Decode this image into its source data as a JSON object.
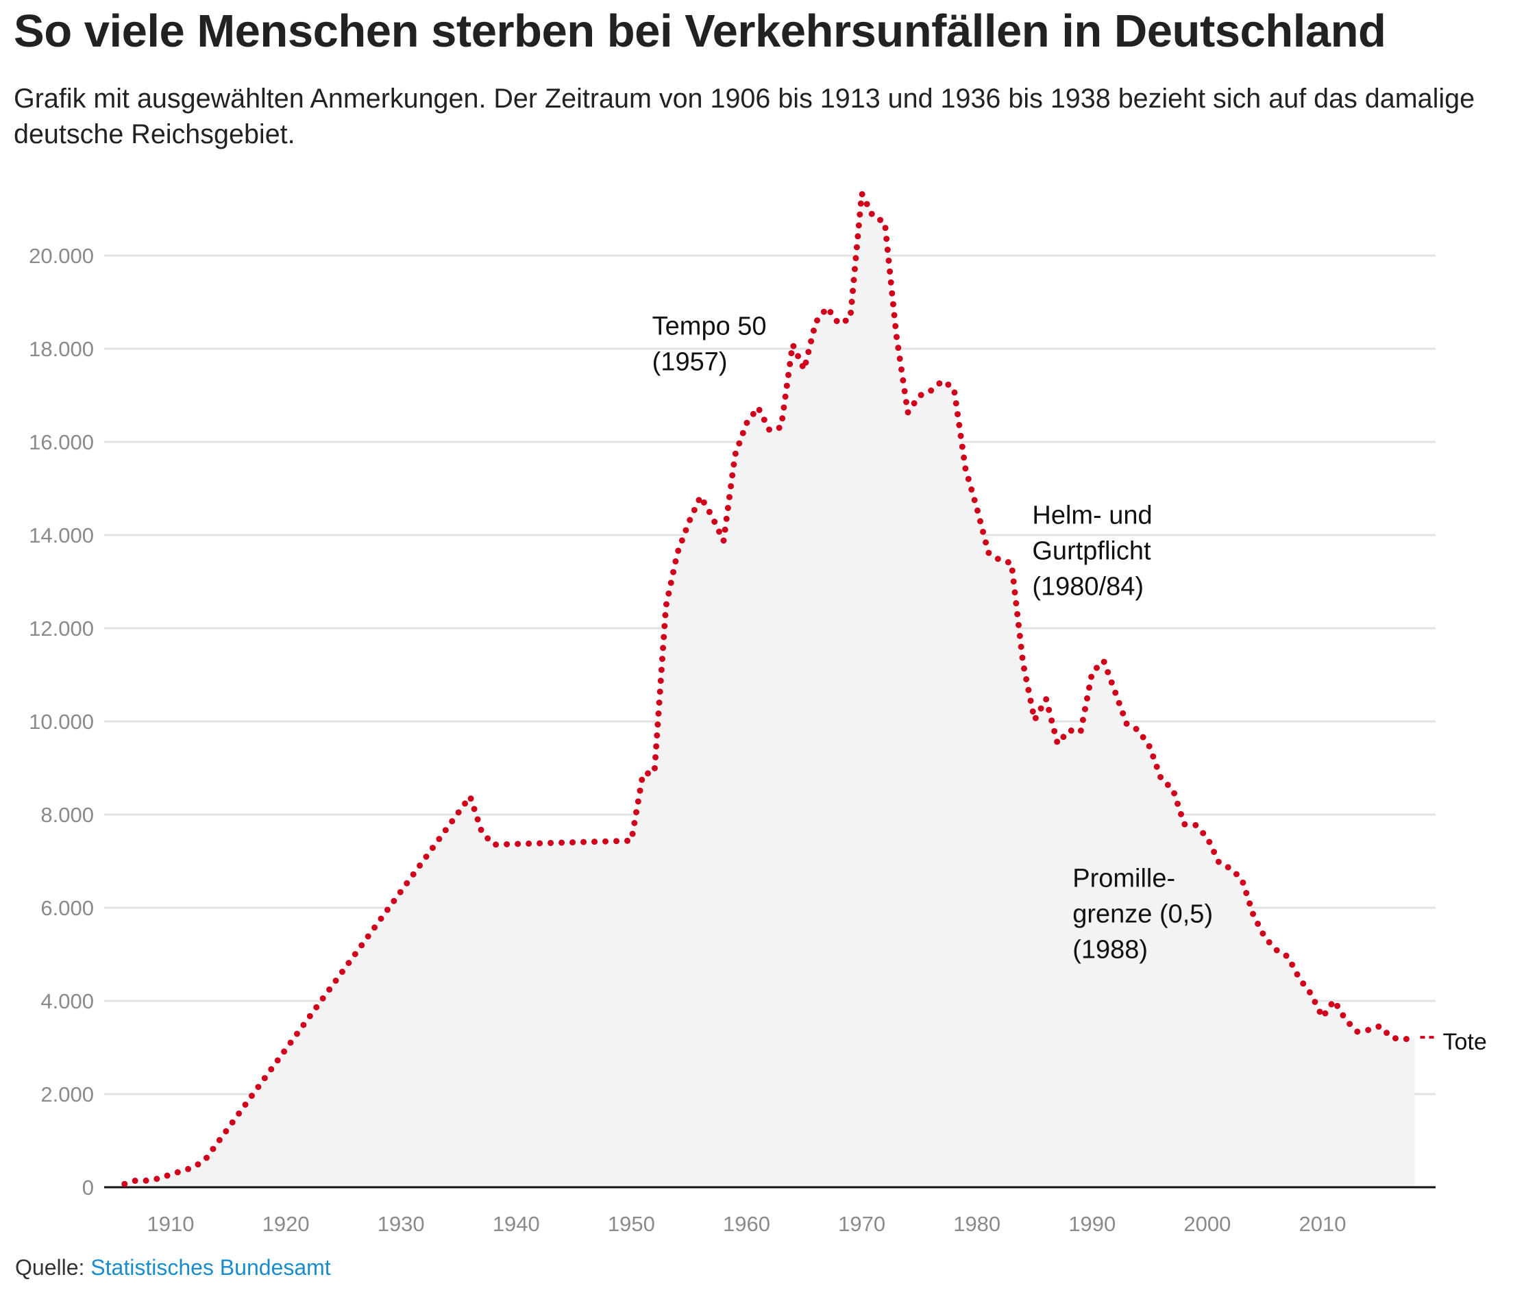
{
  "header": {
    "title": "So viele Menschen sterben bei Verkehrsunfällen in Deutschland",
    "subtitle": "Grafik mit ausgewählten Anmerkungen. Der Zeitraum von 1906 bis 1913 und 1936 bis 1938 bezieht sich auf das damalige deutsche Reichsgebiet."
  },
  "footer": {
    "source_prefix": "Quelle:",
    "source_link": "Statistisches Bundesamt"
  },
  "colors": {
    "line": "#d0021b",
    "area": "#f3f3f3",
    "grid": "#e2e2e2",
    "axis": "#111111",
    "tick_text": "#8a8a8a",
    "link": "#1a8ccc"
  },
  "chart_data": {
    "type": "area",
    "title": "So viele Menschen sterben bei Verkehrsunfällen in Deutschland",
    "xlabel": "",
    "ylabel": "",
    "xlim": [
      1905,
      2021
    ],
    "ylim": [
      0,
      20000
    ],
    "grid": true,
    "legend": "none",
    "y_ticks": [
      0,
      2000,
      4000,
      6000,
      8000,
      10000,
      12000,
      14000,
      16000,
      18000,
      20000
    ],
    "y_tick_labels": [
      "0",
      "2.000",
      "4.000",
      "6.000",
      "8.000",
      "10.000",
      "12.000",
      "14.000",
      "16.000",
      "18.000",
      "20.000"
    ],
    "x_ticks": [
      1910,
      1920,
      1930,
      1940,
      1950,
      1960,
      1970,
      1980,
      1990,
      2000,
      2010
    ],
    "x_tick_labels": [
      "1910",
      "1920",
      "1930",
      "1940",
      "1950",
      "1960",
      "1970",
      "1980",
      "1990",
      "2000",
      "2010"
    ],
    "series": [
      {
        "name": "Tote",
        "style": "dotted",
        "x": [
          1906,
          1907,
          1908,
          1909,
          1910,
          1911,
          1912,
          1913,
          1936,
          1937,
          1938,
          1950,
          1951,
          1952,
          1953,
          1954,
          1955,
          1956,
          1957,
          1958,
          1959,
          1960,
          1961,
          1962,
          1963,
          1964,
          1965,
          1966,
          1967,
          1968,
          1969,
          1970,
          1971,
          1972,
          1973,
          1974,
          1975,
          1976,
          1977,
          1978,
          1979,
          1980,
          1981,
          1982,
          1983,
          1984,
          1985,
          1986,
          1987,
          1988,
          1989,
          1990,
          1991,
          1992,
          1993,
          1994,
          1995,
          1996,
          1997,
          1998,
          1999,
          2000,
          2001,
          2002,
          2003,
          2004,
          2005,
          2006,
          2007,
          2008,
          2009,
          2010,
          2011,
          2012,
          2013,
          2014,
          2015,
          2016,
          2017,
          2018
        ],
        "values": [
          70,
          145,
          142,
          190,
          275,
          350,
          430,
          590,
          8388,
          7636,
          7354,
          7440,
          8870,
          8900,
          12470,
          13620,
          14280,
          14830,
          14400,
          13870,
          15720,
          16400,
          16740,
          16245,
          16313,
          18094,
          17553,
          18568,
          18884,
          18536,
          18646,
          21332,
          20830,
          20720,
          18300,
          16630,
          16990,
          17100,
          17310,
          17150,
          15430,
          14570,
          13620,
          13460,
          13400,
          11250,
          10030,
          10480,
          9520,
          9810,
          9770,
          11050,
          11300,
          10631,
          9949,
          9814,
          9454,
          8758,
          8549,
          7792,
          7772,
          7503,
          6977,
          6842,
          6613,
          5842,
          5361,
          5091,
          4949,
          4477,
          4152,
          3648,
          4009,
          3600,
          3339,
          3377,
          3459,
          3206,
          3180,
          3190
        ]
      }
    ],
    "annotations": [
      {
        "lines": [
          "Tempo 50",
          "(1957)"
        ],
        "anchor_year": 1951.8,
        "anchor_value": 18300
      },
      {
        "lines": [
          "Helm- und",
          "Gurtpflicht",
          "(1980/84)"
        ],
        "anchor_year": 1984.8,
        "anchor_value": 14240
      },
      {
        "lines": [
          "Promille-",
          "grenze (0,5)",
          "(1988)"
        ],
        "anchor_year": 1988.3,
        "anchor_value": 6450
      }
    ],
    "series_label": "Tote"
  }
}
